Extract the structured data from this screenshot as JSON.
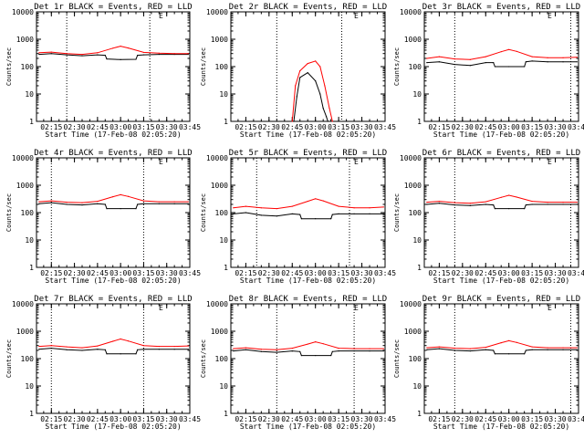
{
  "chart_data": [
    {
      "type": "line",
      "title": "Det 1r BLACK = Events, RED = LLD",
      "xlabel": "Start Time (17-Feb-08 02:05:20)",
      "ylabel": "Counts/sec",
      "x_ticks": [
        "02:15",
        "02:30",
        "02:45",
        "03:00",
        "03:15",
        "03:30",
        "03:45"
      ],
      "y_ticks": [
        "1",
        "10",
        "100",
        "1000",
        "10000"
      ],
      "y_scale": "log",
      "xlim": [
        "02:05:20",
        "03:45"
      ],
      "ylim": [
        1,
        10000
      ],
      "marker": "E",
      "vlines": [
        "02:25",
        "03:19"
      ],
      "series": [
        {
          "color": "#000000",
          "x": [
            "02:07",
            "02:15",
            "02:25",
            "02:35",
            "02:45",
            "02:50",
            "02:51",
            "03:00",
            "03:10",
            "03:11",
            "03:15",
            "03:25",
            "03:35",
            "03:44"
          ],
          "values": [
            280,
            300,
            270,
            250,
            270,
            260,
            190,
            180,
            185,
            260,
            270,
            280,
            280,
            280
          ]
        },
        {
          "color": "#ff0000",
          "x": [
            "02:07",
            "02:15",
            "02:25",
            "02:35",
            "02:45",
            "02:55",
            "03:00",
            "03:05",
            "03:15",
            "03:25",
            "03:35",
            "03:44"
          ],
          "values": [
            320,
            340,
            300,
            280,
            320,
            470,
            560,
            480,
            330,
            310,
            300,
            300
          ]
        }
      ]
    },
    {
      "type": "line",
      "title": "Det 2r BLACK = Events, RED = LLD",
      "xlabel": "Start Time (17-Feb-08 02:05:20)",
      "ylabel": "Counts/sec",
      "x_ticks": [
        "02:15",
        "02:30",
        "02:45",
        "03:00",
        "03:15",
        "03:30",
        "03:45"
      ],
      "y_ticks": [
        "1",
        "10",
        "100",
        "1000",
        "10000"
      ],
      "y_scale": "log",
      "xlim": [
        "02:05:20",
        "03:45"
      ],
      "ylim": [
        1,
        10000
      ],
      "marker": "E",
      "vlines": [
        "02:35",
        "03:17"
      ],
      "series": [
        {
          "color": "#000000",
          "x": [
            "02:46",
            "02:48",
            "02:50",
            "02:55",
            "03:00",
            "03:03",
            "03:05",
            "03:07",
            "03:08"
          ],
          "values": [
            1,
            8,
            40,
            60,
            30,
            10,
            3,
            1.5,
            1
          ]
        },
        {
          "color": "#ff0000",
          "x": [
            "02:45",
            "02:47",
            "02:50",
            "02:55",
            "03:00",
            "03:03",
            "03:06",
            "03:09",
            "03:11"
          ],
          "values": [
            1,
            20,
            70,
            130,
            160,
            100,
            20,
            3,
            1
          ]
        }
      ]
    },
    {
      "type": "line",
      "title": "Det 3r BLACK = Events, RED = LLD",
      "xlabel": "Start Time (17-Feb-08 02:05:20)",
      "ylabel": "Counts/sec",
      "x_ticks": [
        "02:15",
        "02:30",
        "02:45",
        "03:00",
        "03:15",
        "03:30",
        "03:45"
      ],
      "y_ticks": [
        "1",
        "10",
        "100",
        "1000",
        "10000"
      ],
      "y_scale": "log",
      "xlim": [
        "02:05:20",
        "03:45"
      ],
      "ylim": [
        1,
        10000
      ],
      "marker": "E",
      "vlines": [
        "02:25",
        "03:40"
      ],
      "series": [
        {
          "color": "#000000",
          "x": [
            "02:07",
            "02:15",
            "02:25",
            "02:35",
            "02:45",
            "02:50",
            "02:51",
            "03:00",
            "03:10",
            "03:11",
            "03:15",
            "03:25",
            "03:35",
            "03:44"
          ],
          "values": [
            140,
            150,
            120,
            110,
            140,
            140,
            100,
            100,
            100,
            150,
            160,
            150,
            150,
            150
          ]
        },
        {
          "color": "#ff0000",
          "x": [
            "02:07",
            "02:15",
            "02:25",
            "02:35",
            "02:45",
            "02:55",
            "03:00",
            "03:05",
            "03:15",
            "03:25",
            "03:35",
            "03:44"
          ],
          "values": [
            200,
            230,
            190,
            180,
            230,
            350,
            420,
            360,
            230,
            210,
            210,
            220
          ]
        }
      ]
    },
    {
      "type": "line",
      "title": "Det 4r BLACK = Events, RED = LLD",
      "xlabel": "Start Time (17-Feb-08 02:05:20)",
      "ylabel": "Counts/sec",
      "x_ticks": [
        "02:15",
        "02:30",
        "02:45",
        "03:00",
        "03:15",
        "03:30",
        "03:45"
      ],
      "y_ticks": [
        "1",
        "10",
        "100",
        "1000",
        "10000"
      ],
      "y_scale": "log",
      "xlim": [
        "02:05:20",
        "03:45"
      ],
      "ylim": [
        1,
        10000
      ],
      "marker": "E",
      "vlines": [
        "02:15",
        "03:15"
      ],
      "series": [
        {
          "color": "#000000",
          "x": [
            "02:07",
            "02:15",
            "02:25",
            "02:35",
            "02:45",
            "02:50",
            "02:51",
            "03:00",
            "03:10",
            "03:11",
            "03:15",
            "03:25",
            "03:35",
            "03:44"
          ],
          "values": [
            210,
            230,
            200,
            190,
            210,
            200,
            140,
            140,
            140,
            200,
            210,
            210,
            210,
            210
          ]
        },
        {
          "color": "#ff0000",
          "x": [
            "02:07",
            "02:15",
            "02:25",
            "02:35",
            "02:45",
            "02:55",
            "03:00",
            "03:05",
            "03:15",
            "03:25",
            "03:35",
            "03:44"
          ],
          "values": [
            250,
            270,
            240,
            230,
            260,
            380,
            450,
            390,
            270,
            250,
            250,
            250
          ]
        }
      ]
    },
    {
      "type": "line",
      "title": "Det 5r BLACK = Events, RED = LLD",
      "xlabel": "Start Time (17-Feb-08 02:05:20)",
      "ylabel": "Counts/sec",
      "x_ticks": [
        "02:15",
        "02:30",
        "02:45",
        "03:00",
        "03:15",
        "03:30",
        "03:45"
      ],
      "y_ticks": [
        "1",
        "10",
        "100",
        "1000",
        "10000"
      ],
      "y_scale": "log",
      "xlim": [
        "02:05:20",
        "03:45"
      ],
      "ylim": [
        1,
        10000
      ],
      "marker": "E",
      "vlines": [
        "02:22",
        "03:22"
      ],
      "series": [
        {
          "color": "#000000",
          "x": [
            "02:07",
            "02:15",
            "02:25",
            "02:35",
            "02:45",
            "02:50",
            "02:51",
            "03:00",
            "03:10",
            "03:11",
            "03:15",
            "03:25",
            "03:35",
            "03:44"
          ],
          "values": [
            90,
            100,
            80,
            75,
            90,
            85,
            60,
            60,
            60,
            85,
            90,
            90,
            90,
            90
          ]
        },
        {
          "color": "#ff0000",
          "x": [
            "02:07",
            "02:15",
            "02:25",
            "02:35",
            "02:45",
            "02:55",
            "03:00",
            "03:05",
            "03:15",
            "03:25",
            "03:35",
            "03:44"
          ],
          "values": [
            150,
            170,
            150,
            140,
            170,
            260,
            320,
            270,
            170,
            150,
            150,
            160
          ]
        }
      ]
    },
    {
      "type": "line",
      "title": "Det 6r BLACK = Events, RED = LLD",
      "xlabel": "Start Time (17-Feb-08 02:05:20)",
      "ylabel": "Counts/sec",
      "x_ticks": [
        "02:15",
        "02:30",
        "02:45",
        "03:00",
        "03:15",
        "03:30",
        "03:45"
      ],
      "y_ticks": [
        "1",
        "10",
        "100",
        "1000",
        "10000"
      ],
      "y_scale": "log",
      "xlim": [
        "02:05:20",
        "03:45"
      ],
      "ylim": [
        1,
        10000
      ],
      "marker": "E",
      "vlines": [
        "02:25",
        "03:40"
      ],
      "series": [
        {
          "color": "#000000",
          "x": [
            "02:07",
            "02:15",
            "02:25",
            "02:35",
            "02:45",
            "02:50",
            "02:51",
            "03:00",
            "03:10",
            "03:11",
            "03:15",
            "03:25",
            "03:35",
            "03:44"
          ],
          "values": [
            200,
            220,
            190,
            180,
            200,
            190,
            140,
            140,
            140,
            190,
            200,
            200,
            200,
            200
          ]
        },
        {
          "color": "#ff0000",
          "x": [
            "02:07",
            "02:15",
            "02:25",
            "02:35",
            "02:45",
            "02:55",
            "03:00",
            "03:05",
            "03:15",
            "03:25",
            "03:35",
            "03:44"
          ],
          "values": [
            240,
            260,
            230,
            220,
            250,
            360,
            430,
            370,
            260,
            240,
            240,
            240
          ]
        }
      ]
    },
    {
      "type": "line",
      "title": "Det 7r BLACK = Events, RED = LLD",
      "xlabel": "Start Time (17-Feb-08 02:05:20)",
      "ylabel": "Counts/sec",
      "x_ticks": [
        "02:15",
        "02:30",
        "02:45",
        "03:00",
        "03:15",
        "03:30",
        "03:45"
      ],
      "y_ticks": [
        "1",
        "10",
        "100",
        "1000",
        "10000"
      ],
      "y_scale": "log",
      "xlim": [
        "02:05:20",
        "03:45"
      ],
      "ylim": [
        1,
        10000
      ],
      "marker": "E",
      "vlines": [
        "02:15",
        "03:15"
      ],
      "series": [
        {
          "color": "#000000",
          "x": [
            "02:07",
            "02:15",
            "02:25",
            "02:35",
            "02:45",
            "02:50",
            "02:51",
            "03:00",
            "03:10",
            "03:11",
            "03:15",
            "03:25",
            "03:35",
            "03:44"
          ],
          "values": [
            220,
            240,
            210,
            200,
            220,
            210,
            150,
            150,
            150,
            210,
            220,
            220,
            220,
            220
          ]
        },
        {
          "color": "#ff0000",
          "x": [
            "02:07",
            "02:15",
            "02:25",
            "02:35",
            "02:45",
            "02:55",
            "03:00",
            "03:05",
            "03:15",
            "03:25",
            "03:35",
            "03:44"
          ],
          "values": [
            280,
            300,
            270,
            250,
            290,
            430,
            520,
            440,
            300,
            280,
            280,
            290
          ]
        }
      ]
    },
    {
      "type": "line",
      "title": "Det 8r BLACK = Events, RED = LLD",
      "xlabel": "Start Time (17-Feb-08 02:05:20)",
      "ylabel": "Counts/sec",
      "x_ticks": [
        "02:15",
        "02:30",
        "02:45",
        "03:00",
        "03:15",
        "03:30",
        "03:45"
      ],
      "y_ticks": [
        "1",
        "10",
        "100",
        "1000",
        "10000"
      ],
      "y_scale": "log",
      "xlim": [
        "02:05:20",
        "03:45"
      ],
      "ylim": [
        1,
        10000
      ],
      "marker": "E",
      "vlines": [
        "02:35",
        "03:25"
      ],
      "series": [
        {
          "color": "#000000",
          "x": [
            "02:07",
            "02:15",
            "02:25",
            "02:35",
            "02:45",
            "02:50",
            "02:51",
            "03:00",
            "03:10",
            "03:11",
            "03:15",
            "03:25",
            "03:35",
            "03:44"
          ],
          "values": [
            190,
            210,
            180,
            170,
            190,
            180,
            130,
            130,
            130,
            180,
            190,
            190,
            190,
            190
          ]
        },
        {
          "color": "#ff0000",
          "x": [
            "02:07",
            "02:15",
            "02:25",
            "02:35",
            "02:45",
            "02:55",
            "03:00",
            "03:05",
            "03:15",
            "03:25",
            "03:35",
            "03:44"
          ],
          "values": [
            230,
            250,
            220,
            210,
            240,
            340,
            410,
            350,
            240,
            230,
            230,
            230
          ]
        }
      ]
    },
    {
      "type": "line",
      "title": "Det 9r BLACK = Events, RED = LLD",
      "xlabel": "Start Time (17-Feb-08 02:05:20)",
      "ylabel": "Counts/sec",
      "x_ticks": [
        "02:15",
        "02:30",
        "02:45",
        "03:00",
        "03:15",
        "03:30",
        "03:45"
      ],
      "y_ticks": [
        "1",
        "10",
        "100",
        "1000",
        "10000"
      ],
      "y_scale": "log",
      "xlim": [
        "02:05:20",
        "03:45"
      ],
      "ylim": [
        1,
        10000
      ],
      "marker": "E",
      "vlines": [
        "02:25",
        "03:40"
      ],
      "series": [
        {
          "color": "#000000",
          "x": [
            "02:07",
            "02:15",
            "02:25",
            "02:35",
            "02:45",
            "02:50",
            "02:51",
            "03:00",
            "03:10",
            "03:11",
            "03:15",
            "03:25",
            "03:35",
            "03:44"
          ],
          "values": [
            210,
            230,
            200,
            190,
            210,
            200,
            150,
            150,
            150,
            200,
            210,
            210,
            210,
            210
          ]
        },
        {
          "color": "#ff0000",
          "x": [
            "02:07",
            "02:15",
            "02:25",
            "02:35",
            "02:45",
            "02:55",
            "03:00",
            "03:05",
            "03:15",
            "03:25",
            "03:35",
            "03:44"
          ],
          "values": [
            250,
            270,
            240,
            230,
            260,
            380,
            450,
            390,
            270,
            250,
            250,
            250
          ]
        }
      ]
    }
  ]
}
